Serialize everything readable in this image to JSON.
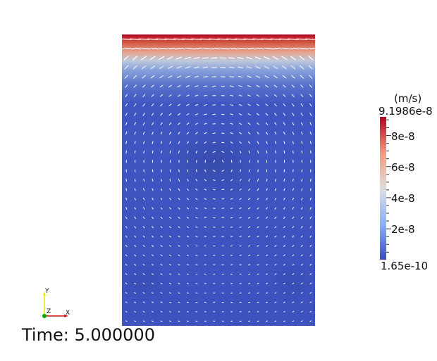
{
  "scene": {
    "type": "velocity-vector-field-render",
    "background": "#ffffff",
    "colormap": [
      "#3b4cc0",
      "#8db0fe",
      "#dddddd",
      "#f49a7b",
      "#b40426"
    ],
    "glyph_color": "#ffffff"
  },
  "colorbar": {
    "title": "(m/s)",
    "max_label": "9.1986e-8",
    "min_label": "1.65e-10",
    "range": [
      1.65e-10,
      9.1986e-08
    ],
    "ticks": [
      {
        "label": "8e-8",
        "value": 8e-08
      },
      {
        "label": "6e-8",
        "value": 6e-08
      },
      {
        "label": "4e-8",
        "value": 4e-08
      },
      {
        "label": "2e-8",
        "value": 2e-08
      }
    ]
  },
  "annotation": {
    "time_label": "Time: 5.000000"
  },
  "orientation_axes": {
    "y_label": "Y",
    "z_label": "Z",
    "x_label": "X",
    "y_color": "#e8e800",
    "x_color": "#d01010",
    "z_color": "#00aa00"
  }
}
